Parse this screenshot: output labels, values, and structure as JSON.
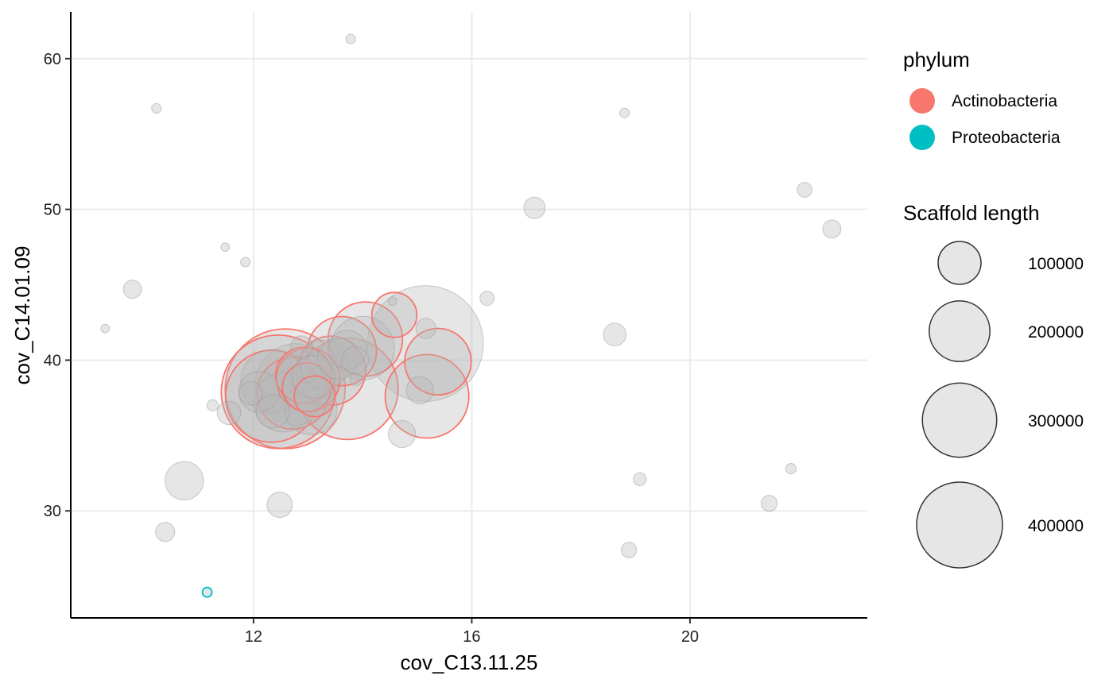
{
  "chart_data": {
    "type": "scatter",
    "title": "",
    "xlabel": "cov_C13.11.25",
    "ylabel": "cov_C14.01.09",
    "xlim": [
      8.65,
      23.25
    ],
    "ylim": [
      22.9,
      63.1
    ],
    "x_ticks": [
      12,
      16,
      20
    ],
    "y_ticks": [
      30,
      40,
      50,
      60
    ],
    "grid": true,
    "legend_position": "right",
    "colors": {
      "Actinobacteria": "#F8766D",
      "Proteobacteria": "#00BFC4",
      "unassigned_fill": "#B8B8B8",
      "unassigned_stroke": "#9A9A9A",
      "legend_size_fill": "#E6E6E6",
      "legend_size_stroke": "#333333",
      "grid": "#EBEBEB",
      "axis": "#000000"
    },
    "legend_color": {
      "title": "phylum",
      "entries": [
        {
          "label": "Actinobacteria",
          "group": "Actinobacteria"
        },
        {
          "label": "Proteobacteria",
          "group": "Proteobacteria"
        }
      ]
    },
    "legend_size": {
      "title": "Scaffold length",
      "entries": [
        {
          "label": "100000",
          "value": 100000
        },
        {
          "label": "200000",
          "value": 200000
        },
        {
          "label": "300000",
          "value": 300000
        },
        {
          "label": "400000",
          "value": 400000
        }
      ]
    },
    "points": [
      {
        "x": 13.78,
        "y": 61.3,
        "length": 5000,
        "group": null
      },
      {
        "x": 10.22,
        "y": 56.7,
        "length": 5000,
        "group": null
      },
      {
        "x": 18.8,
        "y": 56.4,
        "length": 5000,
        "group": null
      },
      {
        "x": 22.1,
        "y": 51.3,
        "length": 12000,
        "group": null
      },
      {
        "x": 22.6,
        "y": 48.7,
        "length": 18000,
        "group": null
      },
      {
        "x": 17.15,
        "y": 50.1,
        "length": 25000,
        "group": null
      },
      {
        "x": 11.48,
        "y": 47.5,
        "length": 4000,
        "group": null
      },
      {
        "x": 11.85,
        "y": 46.5,
        "length": 5000,
        "group": null
      },
      {
        "x": 9.78,
        "y": 44.7,
        "length": 18000,
        "group": null
      },
      {
        "x": 16.28,
        "y": 44.1,
        "length": 11000,
        "group": null
      },
      {
        "x": 9.28,
        "y": 42.1,
        "length": 4000,
        "group": null
      },
      {
        "x": 18.62,
        "y": 41.7,
        "length": 28000,
        "group": null
      },
      {
        "x": 14.55,
        "y": 43.9,
        "length": 4000,
        "group": null
      },
      {
        "x": 15.16,
        "y": 42.1,
        "length": 22000,
        "group": null
      },
      {
        "x": 11.25,
        "y": 37.0,
        "length": 7000,
        "group": null
      },
      {
        "x": 11.55,
        "y": 36.5,
        "length": 30000,
        "group": null
      },
      {
        "x": 14.72,
        "y": 35.1,
        "length": 40000,
        "group": null
      },
      {
        "x": 10.73,
        "y": 32.0,
        "length": 80000,
        "group": null
      },
      {
        "x": 12.48,
        "y": 30.4,
        "length": 35000,
        "group": null
      },
      {
        "x": 10.38,
        "y": 28.6,
        "length": 20000,
        "group": null
      },
      {
        "x": 19.08,
        "y": 32.1,
        "length": 9000,
        "group": null
      },
      {
        "x": 21.85,
        "y": 32.8,
        "length": 6000,
        "group": null
      },
      {
        "x": 21.45,
        "y": 30.5,
        "length": 14000,
        "group": null
      },
      {
        "x": 18.88,
        "y": 27.4,
        "length": 13000,
        "group": null
      },
      {
        "x": 11.15,
        "y": 24.6,
        "length": 5000,
        "group": "Proteobacteria"
      },
      {
        "x": 15.15,
        "y": 41.1,
        "length": 730000,
        "group": null
      },
      {
        "x": 13.72,
        "y": 38.1,
        "length": 560000,
        "group": "Actinobacteria"
      },
      {
        "x": 12.45,
        "y": 37.9,
        "length": 700000,
        "group": "Actinobacteria"
      },
      {
        "x": 12.58,
        "y": 38.1,
        "length": 780000,
        "group": "Actinobacteria"
      },
      {
        "x": 12.33,
        "y": 37.6,
        "length": 460000,
        "group": "Actinobacteria"
      },
      {
        "x": 12.35,
        "y": 38.6,
        "length": 220000,
        "group": null
      },
      {
        "x": 12.78,
        "y": 38.4,
        "length": 360000,
        "group": null
      },
      {
        "x": 12.72,
        "y": 37.8,
        "length": 280000,
        "group": "Actinobacteria"
      },
      {
        "x": 12.1,
        "y": 37.9,
        "length": 90000,
        "group": null
      },
      {
        "x": 11.95,
        "y": 37.8,
        "length": 30000,
        "group": null
      },
      {
        "x": 12.35,
        "y": 36.6,
        "length": 60000,
        "group": null
      },
      {
        "x": 12.55,
        "y": 37.2,
        "length": 190000,
        "group": null
      },
      {
        "x": 13.0,
        "y": 38.7,
        "length": 220000,
        "group": "Actinobacteria"
      },
      {
        "x": 12.92,
        "y": 39.0,
        "length": 170000,
        "group": "Actinobacteria"
      },
      {
        "x": 12.98,
        "y": 38.2,
        "length": 130000,
        "group": "Actinobacteria"
      },
      {
        "x": 13.1,
        "y": 38.9,
        "length": 100000,
        "group": null
      },
      {
        "x": 13.12,
        "y": 37.6,
        "length": 90000,
        "group": "Actinobacteria"
      },
      {
        "x": 12.88,
        "y": 40.9,
        "length": 25000,
        "group": null
      },
      {
        "x": 13.05,
        "y": 36.8,
        "length": 150000,
        "group": null
      },
      {
        "x": 13.42,
        "y": 39.3,
        "length": 260000,
        "group": "Actinobacteria"
      },
      {
        "x": 13.3,
        "y": 39.7,
        "length": 130000,
        "group": null
      },
      {
        "x": 13.55,
        "y": 40.1,
        "length": 90000,
        "group": null
      },
      {
        "x": 13.62,
        "y": 40.6,
        "length": 260000,
        "group": "Actinobacteria"
      },
      {
        "x": 13.72,
        "y": 40.7,
        "length": 80000,
        "group": null
      },
      {
        "x": 13.86,
        "y": 40.0,
        "length": 40000,
        "group": null
      },
      {
        "x": 13.88,
        "y": 38.7,
        "length": 8000,
        "group": null
      },
      {
        "x": 14.0,
        "y": 40.8,
        "length": 220000,
        "group": null
      },
      {
        "x": 14.05,
        "y": 41.4,
        "length": 300000,
        "group": "Actinobacteria"
      },
      {
        "x": 14.58,
        "y": 43.0,
        "length": 110000,
        "group": "Actinobacteria"
      },
      {
        "x": 15.38,
        "y": 39.9,
        "length": 240000,
        "group": "Actinobacteria"
      },
      {
        "x": 15.18,
        "y": 37.6,
        "length": 380000,
        "group": "Actinobacteria"
      },
      {
        "x": 15.05,
        "y": 38.0,
        "length": 40000,
        "group": null
      }
    ]
  }
}
